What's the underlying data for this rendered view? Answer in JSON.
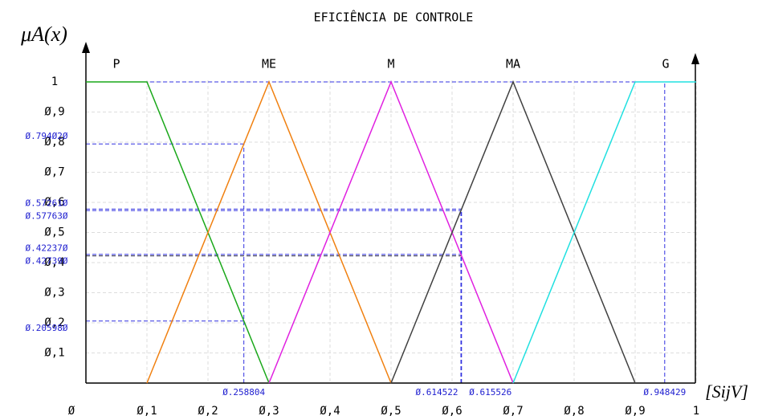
{
  "chart_data": {
    "type": "line",
    "title": "EFICIÊNCIA DE CONTROLE",
    "y_label": "μA(x)",
    "x_label": "[SijV]",
    "xlim": [
      0,
      1
    ],
    "ylim": [
      0,
      1
    ],
    "xticks": [
      {
        "value": 0,
        "label": "Ø"
      },
      {
        "value": 0.1,
        "label": "Ø,1"
      },
      {
        "value": 0.2,
        "label": "Ø,2"
      },
      {
        "value": 0.3,
        "label": "Ø,3"
      },
      {
        "value": 0.4,
        "label": "Ø,4"
      },
      {
        "value": 0.5,
        "label": "Ø,5"
      },
      {
        "value": 0.6,
        "label": "Ø,6"
      },
      {
        "value": 0.7,
        "label": "Ø,7"
      },
      {
        "value": 0.8,
        "label": "Ø,8"
      },
      {
        "value": 0.9,
        "label": "Ø,9"
      },
      1
    ],
    "yticks": [
      {
        "value": 0.1,
        "label": "Ø,1"
      },
      {
        "value": 0.2,
        "label": "Ø,2"
      },
      {
        "value": 0.3,
        "label": "Ø,3"
      },
      {
        "value": 0.4,
        "label": "Ø,4"
      },
      {
        "value": 0.5,
        "label": "Ø,5"
      },
      {
        "value": 0.6,
        "label": "Ø,6"
      },
      {
        "value": 0.7,
        "label": "Ø,7"
      },
      {
        "value": 0.8,
        "label": "Ø,8"
      },
      {
        "value": 0.9,
        "label": "Ø,9"
      },
      1
    ],
    "grid": true,
    "series": [
      {
        "name": "P",
        "color": "#1aa81a",
        "x": [
          0,
          0.1,
          0.3
        ],
        "values": [
          1,
          1,
          0
        ]
      },
      {
        "name": "ME",
        "color": "#f08010",
        "x": [
          0.1,
          0.3,
          0.5
        ],
        "values": [
          0,
          1,
          0
        ]
      },
      {
        "name": "M",
        "color": "#e020e0",
        "x": [
          0.3,
          0.5,
          0.7
        ],
        "values": [
          0,
          1,
          0
        ]
      },
      {
        "name": "MA",
        "color": "#404040",
        "x": [
          0.5,
          0.7,
          0.9
        ],
        "values": [
          0,
          1,
          0
        ]
      },
      {
        "name": "G",
        "color": "#20e0e0",
        "x": [
          0.7,
          0.9,
          1
        ],
        "values": [
          0,
          1,
          1
        ]
      }
    ],
    "y_marks": [
      {
        "value": 0.79402,
        "label": "Ø.794Ø2Ø",
        "x": 0.258804
      },
      {
        "value": 0.57763,
        "label": "Ø.57763Ø",
        "x": 0.615526
      },
      {
        "value": 0.57261,
        "label": "Ø.57261Ø",
        "x": 0.614522
      },
      {
        "value": 0.42739,
        "label": "Ø.42739Ø",
        "x": 0.614522
      },
      {
        "value": 0.42237,
        "label": "Ø.42237Ø",
        "x": 0.615526
      },
      {
        "value": 0.20598,
        "label": "Ø.20598Ø",
        "x": 0.258804
      }
    ],
    "x_marks": [
      {
        "value": 0.258804,
        "label": "Ø.258804",
        "y": 0.79402
      },
      {
        "value": 0.614522,
        "label": "Ø.614522",
        "y": 0.57261
      },
      {
        "value": 0.615526,
        "label": "Ø.615526",
        "y": 0.57763
      },
      {
        "value": 0.948429,
        "label": "Ø.948429",
        "y": 1
      }
    ]
  }
}
